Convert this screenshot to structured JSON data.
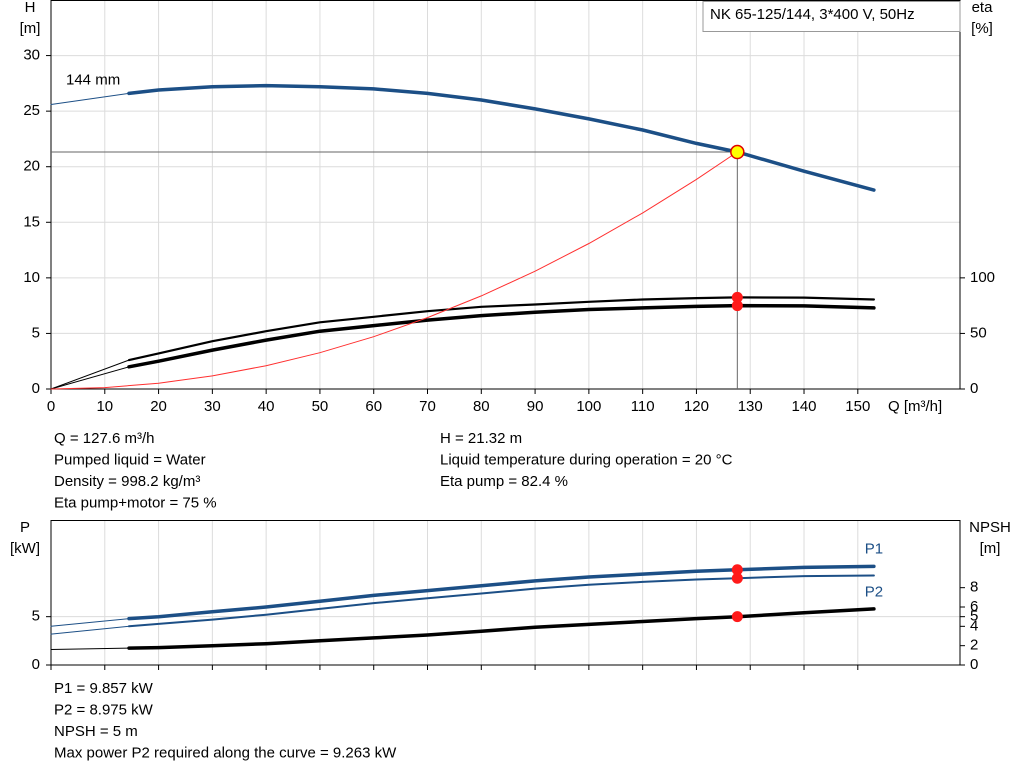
{
  "chart_data": [
    {
      "type": "line",
      "title": "NK 65-125/144, 3*400 V, 50Hz",
      "ylabel": [
        "H",
        "[m]"
      ],
      "y2label": [
        "eta",
        "[%]"
      ],
      "xlabel": "Q [m³/h]",
      "xlim": [
        0,
        169
      ],
      "xticks": [
        0,
        10,
        20,
        30,
        40,
        50,
        60,
        70,
        80,
        90,
        100,
        110,
        120,
        130,
        140,
        150
      ],
      "show_xtick_labels": true,
      "ylim": [
        0,
        35
      ],
      "yticks": [
        0,
        5,
        10,
        15,
        20,
        25,
        30
      ],
      "y2lim": [
        0,
        350
      ],
      "y2ticks": [
        0,
        50,
        100
      ],
      "grid": true,
      "operating_point": {
        "x": 127.6,
        "y": 21.32
      },
      "annotation": "144 mm",
      "series": [
        {
          "color": "#1c4f86",
          "line_width": 3.5,
          "thin_first_segment": true,
          "axis": "y",
          "x": [
            0,
            14.5,
            20,
            30,
            40,
            50,
            60,
            70,
            80,
            90,
            100,
            110,
            120,
            127.6,
            140,
            153
          ],
          "values": [
            25.6,
            26.6,
            26.9,
            27.2,
            27.3,
            27.2,
            27.0,
            26.6,
            26.0,
            25.2,
            24.3,
            23.3,
            22.1,
            21.32,
            19.6,
            17.9
          ]
        },
        {
          "color": "#000000",
          "line_width": 2.2,
          "thin_first_segment": true,
          "axis": "y2",
          "marked": true,
          "x": [
            0,
            14.5,
            20,
            30,
            40,
            50,
            60,
            70,
            80,
            90,
            100,
            110,
            120,
            127.6,
            140,
            153
          ],
          "values": [
            0,
            26,
            32,
            43,
            52,
            60,
            65,
            70,
            74,
            76,
            78.5,
            80.5,
            81.8,
            82.4,
            82.2,
            80.5
          ]
        },
        {
          "color": "#000000",
          "line_width": 3.5,
          "thin_first_segment": true,
          "axis": "y2",
          "marked": true,
          "x": [
            0,
            14.5,
            20,
            30,
            40,
            50,
            60,
            70,
            80,
            90,
            100,
            110,
            120,
            127.6,
            140,
            153
          ],
          "values": [
            0,
            20,
            25,
            35,
            44,
            52,
            57,
            62,
            66,
            69,
            71.5,
            73,
            74.3,
            75,
            74.8,
            73
          ]
        },
        {
          "color": "#ff3030",
          "line_width": 1,
          "thin_first_segment": false,
          "axis": "y",
          "x": [
            0,
            10,
            20,
            30,
            40,
            50,
            60,
            70,
            80,
            90,
            100,
            110,
            120,
            127.6
          ],
          "values": [
            0,
            0.13,
            0.52,
            1.18,
            2.1,
            3.27,
            4.71,
            6.42,
            8.38,
            10.6,
            13.09,
            15.84,
            18.86,
            21.32
          ]
        }
      ],
      "info": [
        [
          "Q = 127.6 m³/h",
          "Pumped liquid = Water",
          "Density = 998.2 kg/m³",
          "Eta pump+motor = 75 %"
        ],
        [
          "H = 21.32 m",
          "Liquid temperature during operation = 20 °C",
          "Eta pump = 82.4 %"
        ]
      ]
    },
    {
      "type": "line",
      "ylabel": [
        "P",
        "[kW]"
      ],
      "y2label": [
        "NPSH",
        "[m]"
      ],
      "xlim": [
        0,
        169
      ],
      "xticks": [
        0,
        10,
        20,
        30,
        40,
        50,
        60,
        70,
        80,
        90,
        100,
        110,
        120,
        130,
        140,
        150
      ],
      "show_xtick_labels": false,
      "ylim": [
        0,
        15
      ],
      "yticks": [
        0,
        5
      ],
      "y2lim": [
        0,
        15
      ],
      "y2ticks": [
        0,
        2,
        4,
        5,
        6,
        8
      ],
      "grid": true,
      "operating_point": {
        "x": 127.6
      },
      "series": [
        {
          "name": "P1",
          "label_position": "above",
          "color": "#1c4f86",
          "line_width": 3.5,
          "thin_first_segment": true,
          "axis": "y",
          "marked": true,
          "x": [
            0,
            14.5,
            20,
            30,
            40,
            50,
            60,
            70,
            80,
            90,
            100,
            110,
            120,
            127.6,
            140,
            153
          ],
          "values": [
            4.0,
            4.8,
            5.0,
            5.5,
            6.0,
            6.6,
            7.2,
            7.7,
            8.2,
            8.7,
            9.1,
            9.4,
            9.7,
            9.857,
            10.1,
            10.2
          ]
        },
        {
          "name": "P2",
          "label_position": "below",
          "color": "#1c4f86",
          "line_width": 2,
          "thin_first_segment": true,
          "axis": "y",
          "marked": true,
          "x": [
            0,
            14.5,
            20,
            30,
            40,
            50,
            60,
            70,
            80,
            90,
            100,
            110,
            120,
            127.6,
            140,
            153
          ],
          "values": [
            3.2,
            4.0,
            4.25,
            4.7,
            5.2,
            5.8,
            6.4,
            6.9,
            7.4,
            7.9,
            8.3,
            8.6,
            8.85,
            8.975,
            9.2,
            9.263
          ]
        },
        {
          "color": "#000000",
          "line_width": 3.5,
          "thin_first_segment": true,
          "axis": "y2",
          "marked": true,
          "x": [
            0,
            14.5,
            20,
            30,
            40,
            50,
            60,
            70,
            80,
            90,
            100,
            110,
            120,
            127.6,
            140,
            153
          ],
          "values": [
            1.6,
            1.75,
            1.8,
            2.0,
            2.2,
            2.5,
            2.8,
            3.1,
            3.5,
            3.9,
            4.2,
            4.5,
            4.8,
            5.0,
            5.4,
            5.8
          ]
        }
      ],
      "info": [
        [
          "P1 = 9.857 kW",
          "P2 = 8.975 kW",
          "NPSH = 5 m",
          "Max power P2 required along the curve = 9.263 kW"
        ]
      ]
    }
  ]
}
